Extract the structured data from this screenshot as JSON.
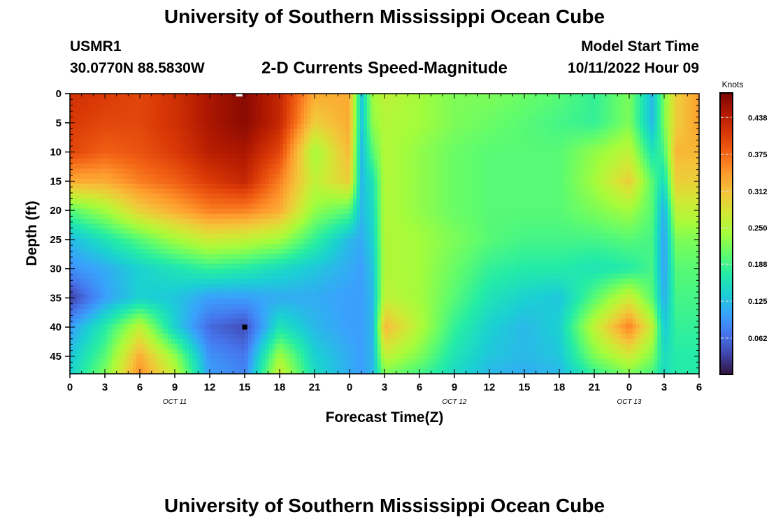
{
  "header": {
    "title": "University of Southern Mississippi Ocean Cube",
    "station_id": "USMR1",
    "station_coords": "30.0770N  88.5830W",
    "subtitle": "2-D Currents Speed-Magnitude",
    "model_start_label": "Model Start Time",
    "model_start_value": "10/11/2022 Hour 09"
  },
  "footer": {
    "repeat_title": "University of Southern Mississippi Ocean Cube"
  },
  "chart_data": {
    "type": "heatmap",
    "title": "2-D Currents Speed-Magnitude",
    "xlabel": "Forecast Time(Z)",
    "ylabel": "Depth (ft)",
    "x_tick_labels": [
      "0",
      "3",
      "6",
      "9",
      "12",
      "15",
      "18",
      "21",
      "0",
      "3",
      "6",
      "9",
      "12",
      "15",
      "18",
      "21",
      "0",
      "3",
      "6"
    ],
    "x_range_hours_since_2022-10-11T00Z": [
      0,
      54
    ],
    "date_labels": [
      {
        "text": "OCT 11",
        "at_tick_index": 3
      },
      {
        "text": "OCT 12",
        "at_tick_index": 11
      },
      {
        "text": "OCT 13",
        "at_tick_index": 16
      }
    ],
    "y_ticks": [
      0,
      5,
      10,
      15,
      20,
      25,
      30,
      35,
      40,
      45
    ],
    "y_range": [
      0,
      48
    ],
    "y_inverted": true,
    "colorbar": {
      "label": "Knots",
      "ticks": [
        "0.438",
        "0.375",
        "0.312",
        "0.250",
        "0.188",
        "0.125",
        "0.062"
      ],
      "range": [
        0,
        0.48
      ],
      "colormap": [
        "#30123b",
        "#4145ab",
        "#4675ed",
        "#39a2fc",
        "#1bcfd4",
        "#24eca6",
        "#61fc6c",
        "#a4fc3b",
        "#d1e834",
        "#f3c63a",
        "#fe9b2d",
        "#f36315",
        "#d93806",
        "#b11901",
        "#7a0403"
      ]
    },
    "speed_field_knots": {
      "depths_ft": [
        0,
        5,
        10,
        15,
        20,
        25,
        30,
        35,
        40,
        45,
        48
      ],
      "hours": [
        0,
        3,
        6,
        9,
        12,
        15,
        18,
        21,
        24,
        25,
        26,
        27,
        30,
        33,
        36,
        39,
        42,
        45,
        48,
        50,
        51,
        52,
        54
      ],
      "values": [
        [
          0.42,
          0.41,
          0.4,
          0.42,
          0.45,
          0.47,
          0.43,
          0.33,
          0.33,
          0.13,
          0.24,
          0.26,
          0.24,
          0.22,
          0.22,
          0.21,
          0.2,
          0.18,
          0.22,
          0.12,
          0.22,
          0.3,
          0.34
        ],
        [
          0.41,
          0.4,
          0.4,
          0.42,
          0.45,
          0.47,
          0.43,
          0.3,
          0.33,
          0.13,
          0.23,
          0.25,
          0.24,
          0.22,
          0.21,
          0.2,
          0.19,
          0.18,
          0.22,
          0.12,
          0.22,
          0.3,
          0.34
        ],
        [
          0.4,
          0.38,
          0.39,
          0.41,
          0.44,
          0.45,
          0.4,
          0.24,
          0.32,
          0.12,
          0.2,
          0.25,
          0.23,
          0.21,
          0.2,
          0.2,
          0.2,
          0.23,
          0.26,
          0.16,
          0.19,
          0.32,
          0.32
        ],
        [
          0.33,
          0.33,
          0.36,
          0.38,
          0.41,
          0.43,
          0.36,
          0.26,
          0.3,
          0.12,
          0.16,
          0.25,
          0.23,
          0.21,
          0.2,
          0.2,
          0.2,
          0.24,
          0.3,
          0.2,
          0.15,
          0.3,
          0.3
        ],
        [
          0.2,
          0.24,
          0.3,
          0.33,
          0.36,
          0.36,
          0.33,
          0.23,
          0.2,
          0.12,
          0.15,
          0.25,
          0.23,
          0.21,
          0.2,
          0.2,
          0.2,
          0.22,
          0.24,
          0.2,
          0.11,
          0.26,
          0.26
        ],
        [
          0.12,
          0.16,
          0.2,
          0.24,
          0.27,
          0.26,
          0.24,
          0.18,
          0.12,
          0.11,
          0.14,
          0.25,
          0.24,
          0.22,
          0.2,
          0.19,
          0.19,
          0.19,
          0.2,
          0.19,
          0.1,
          0.22,
          0.22
        ],
        [
          0.09,
          0.11,
          0.14,
          0.16,
          0.18,
          0.17,
          0.15,
          0.13,
          0.11,
          0.1,
          0.13,
          0.25,
          0.24,
          0.21,
          0.18,
          0.17,
          0.17,
          0.16,
          0.17,
          0.19,
          0.1,
          0.2,
          0.2
        ],
        [
          0.03,
          0.1,
          0.14,
          0.13,
          0.1,
          0.1,
          0.11,
          0.11,
          0.1,
          0.1,
          0.12,
          0.26,
          0.24,
          0.2,
          0.16,
          0.14,
          0.13,
          0.2,
          0.27,
          0.2,
          0.11,
          0.19,
          0.19
        ],
        [
          0.1,
          0.17,
          0.26,
          0.14,
          0.06,
          0.04,
          0.16,
          0.12,
          0.1,
          0.1,
          0.12,
          0.32,
          0.25,
          0.18,
          0.14,
          0.12,
          0.14,
          0.26,
          0.36,
          0.26,
          0.13,
          0.18,
          0.18
        ],
        [
          0.13,
          0.2,
          0.33,
          0.23,
          0.09,
          0.07,
          0.24,
          0.14,
          0.11,
          0.1,
          0.12,
          0.26,
          0.22,
          0.16,
          0.13,
          0.12,
          0.13,
          0.22,
          0.27,
          0.22,
          0.15,
          0.17,
          0.17
        ],
        [
          0.14,
          0.22,
          0.35,
          0.26,
          0.1,
          0.08,
          0.27,
          0.15,
          0.11,
          0.1,
          0.12,
          0.22,
          0.19,
          0.15,
          0.12,
          0.11,
          0.12,
          0.18,
          0.22,
          0.19,
          0.15,
          0.17,
          0.17
        ]
      ]
    },
    "markers": [
      {
        "name": "surface-marker",
        "hour": 14.5,
        "depth_ft": 0,
        "color": "#ffffff"
      },
      {
        "name": "max-marker",
        "hour": 15,
        "depth_ft": 40,
        "color": "#000000"
      }
    ]
  }
}
